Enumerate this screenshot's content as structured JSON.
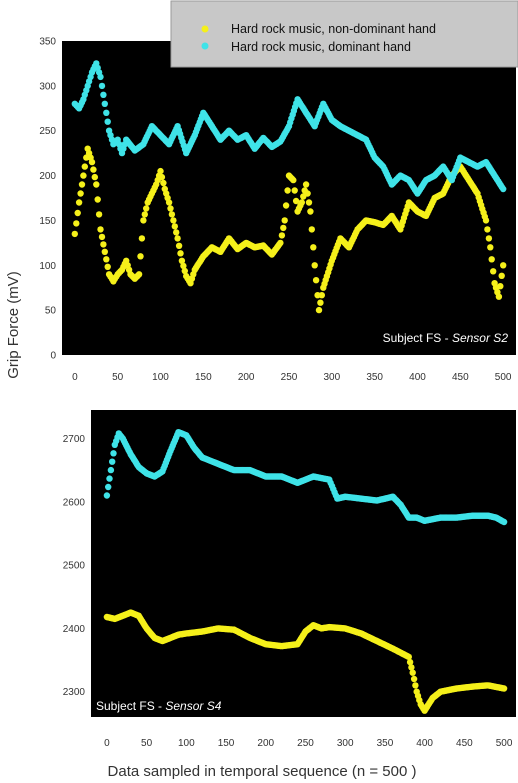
{
  "figure": {
    "shared_ylabel": "Grip Force (mV)",
    "shared_xlabel": "Data sampled in temporal sequence (n = 500 )"
  },
  "legend": {
    "items": [
      {
        "label": "Hard rock music, non-dominant hand",
        "color": "#f5f01a"
      },
      {
        "label": "Hard rock music, dominant hand",
        "color": "#3fe3e8"
      }
    ]
  },
  "colors": {
    "plot_background": "#000000",
    "non_dominant": "#f5f01a",
    "dominant": "#3fe3e8"
  },
  "chart_data": [
    {
      "type": "scatter",
      "panel_label_prefix": "Subject FS - ",
      "panel_label_sensor": "Sensor S2",
      "xlim": [
        -15,
        515
      ],
      "ylim": [
        0,
        350
      ],
      "xticks": [
        0,
        50,
        100,
        150,
        200,
        250,
        300,
        350,
        400,
        450,
        500
      ],
      "yticks": [
        0,
        50,
        100,
        150,
        200,
        250,
        300,
        350
      ],
      "series": [
        {
          "name": "Hard rock music, non-dominant hand",
          "color": "#f5f01a",
          "x": [
            0,
            5,
            10,
            15,
            20,
            25,
            30,
            35,
            40,
            45,
            50,
            55,
            60,
            65,
            70,
            75,
            80,
            85,
            90,
            95,
            100,
            105,
            110,
            115,
            120,
            125,
            130,
            135,
            140,
            150,
            160,
            170,
            180,
            190,
            200,
            210,
            220,
            230,
            240,
            245,
            250,
            255,
            260,
            265,
            270,
            275,
            280,
            285,
            290,
            300,
            310,
            320,
            330,
            340,
            350,
            360,
            370,
            380,
            390,
            400,
            410,
            420,
            430,
            440,
            450,
            460,
            470,
            480,
            485,
            490,
            495,
            500
          ],
          "y": [
            135,
            170,
            200,
            230,
            215,
            190,
            140,
            115,
            90,
            82,
            90,
            95,
            105,
            90,
            85,
            90,
            150,
            170,
            180,
            190,
            205,
            185,
            170,
            150,
            130,
            105,
            88,
            80,
            95,
            110,
            120,
            115,
            130,
            118,
            125,
            120,
            122,
            112,
            125,
            150,
            200,
            195,
            160,
            170,
            190,
            160,
            100,
            50,
            75,
            105,
            130,
            120,
            140,
            150,
            148,
            145,
            155,
            140,
            170,
            160,
            155,
            175,
            180,
            200,
            210,
            195,
            180,
            150,
            120,
            80,
            65,
            100
          ]
        },
        {
          "name": "Hard rock music, dominant hand",
          "color": "#3fe3e8",
          "x": [
            0,
            5,
            10,
            15,
            20,
            25,
            30,
            35,
            40,
            45,
            50,
            55,
            60,
            70,
            80,
            90,
            100,
            110,
            120,
            130,
            140,
            150,
            160,
            170,
            180,
            190,
            200,
            210,
            220,
            230,
            240,
            250,
            260,
            270,
            280,
            290,
            300,
            310,
            320,
            330,
            340,
            350,
            360,
            370,
            380,
            390,
            400,
            410,
            420,
            430,
            440,
            450,
            460,
            470,
            480,
            490,
            500
          ],
          "y": [
            280,
            275,
            285,
            300,
            315,
            325,
            310,
            280,
            250,
            235,
            240,
            225,
            240,
            228,
            235,
            255,
            245,
            235,
            255,
            225,
            245,
            270,
            255,
            240,
            250,
            240,
            245,
            230,
            242,
            232,
            238,
            255,
            285,
            270,
            255,
            280,
            262,
            255,
            250,
            245,
            240,
            220,
            210,
            190,
            200,
            195,
            180,
            195,
            200,
            210,
            195,
            220,
            215,
            210,
            215,
            200,
            185
          ]
        }
      ]
    },
    {
      "type": "scatter",
      "panel_label_prefix": "Subject FS - ",
      "panel_label_sensor": "Sensor S4",
      "xlim": [
        -20,
        515
      ],
      "ylim": [
        2260,
        2745
      ],
      "xticks": [
        0,
        50,
        100,
        150,
        200,
        250,
        300,
        350,
        400,
        450,
        500
      ],
      "yticks": [
        2300,
        2400,
        2500,
        2600,
        2700
      ],
      "series": [
        {
          "name": "Hard rock music, dominant hand",
          "color": "#3fe3e8",
          "x": [
            0,
            5,
            10,
            15,
            20,
            30,
            40,
            50,
            60,
            70,
            80,
            90,
            100,
            110,
            120,
            140,
            160,
            180,
            200,
            220,
            240,
            260,
            280,
            285,
            290,
            300,
            320,
            340,
            360,
            370,
            380,
            390,
            400,
            420,
            440,
            460,
            480,
            490,
            500
          ],
          "y": [
            2610,
            2650,
            2690,
            2708,
            2700,
            2675,
            2655,
            2645,
            2640,
            2648,
            2680,
            2710,
            2705,
            2685,
            2670,
            2660,
            2650,
            2650,
            2640,
            2640,
            2630,
            2640,
            2635,
            2620,
            2605,
            2608,
            2605,
            2602,
            2608,
            2595,
            2575,
            2575,
            2570,
            2575,
            2575,
            2578,
            2578,
            2575,
            2568
          ]
        },
        {
          "name": "Hard rock music, non-dominant hand",
          "color": "#f5f01a",
          "x": [
            0,
            10,
            20,
            30,
            40,
            50,
            60,
            70,
            80,
            90,
            100,
            120,
            140,
            160,
            180,
            200,
            220,
            240,
            250,
            260,
            270,
            280,
            300,
            320,
            340,
            360,
            380,
            385,
            390,
            395,
            400,
            410,
            420,
            440,
            460,
            480,
            500
          ],
          "y": [
            2418,
            2415,
            2420,
            2425,
            2420,
            2400,
            2385,
            2380,
            2385,
            2390,
            2392,
            2395,
            2400,
            2398,
            2385,
            2375,
            2372,
            2375,
            2395,
            2405,
            2400,
            2402,
            2400,
            2392,
            2380,
            2368,
            2355,
            2330,
            2300,
            2280,
            2270,
            2290,
            2300,
            2305,
            2308,
            2310,
            2305
          ]
        }
      ]
    }
  ]
}
